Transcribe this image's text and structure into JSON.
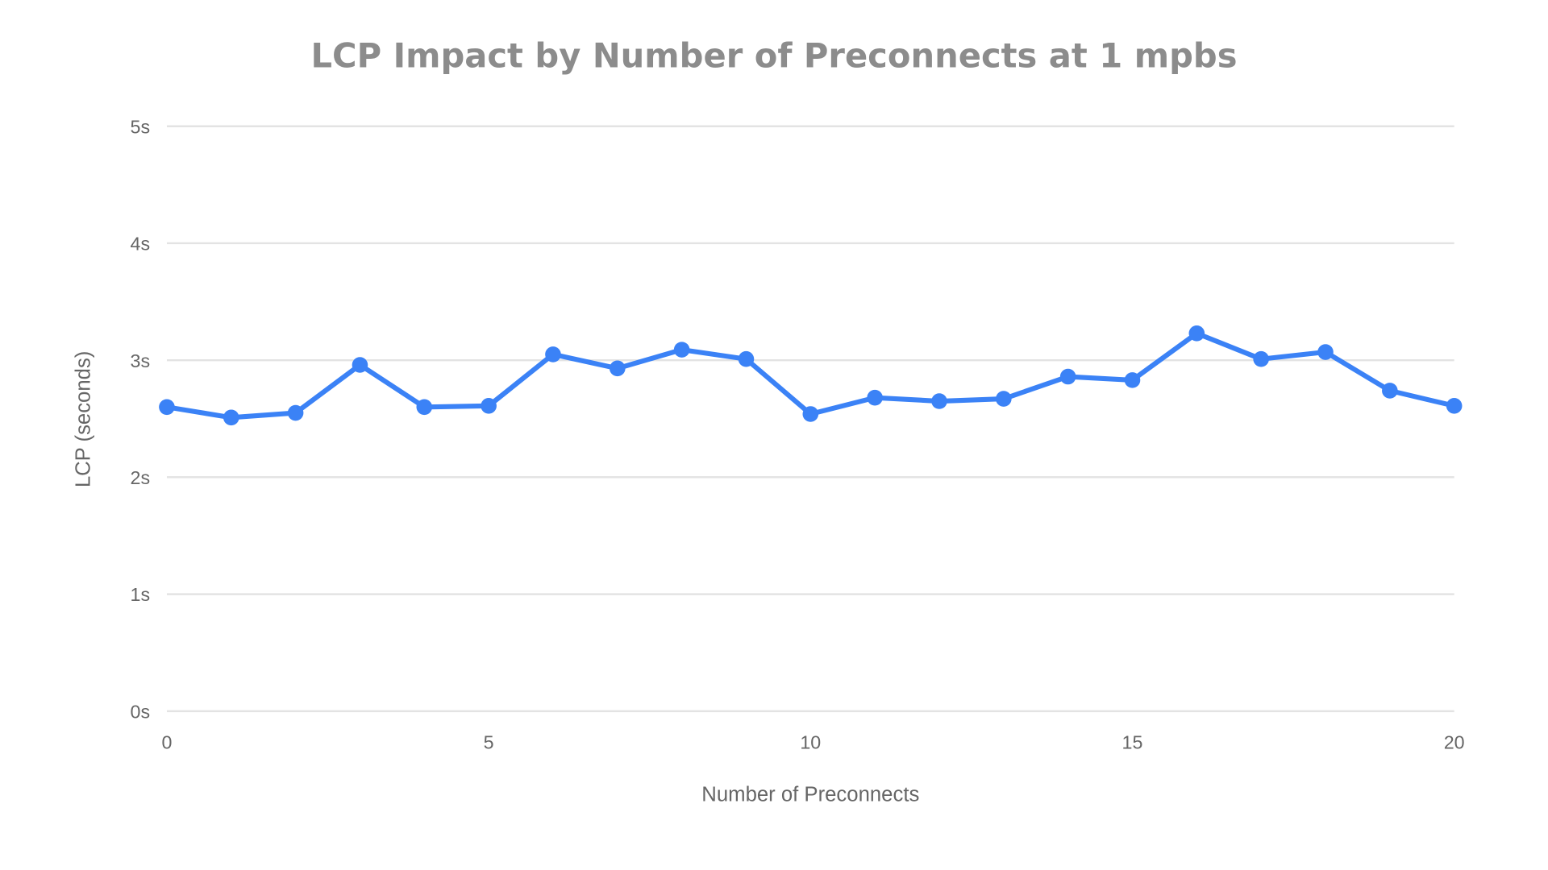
{
  "chart_data": {
    "type": "line",
    "title": "LCP Impact by Number of Preconnects at 1 mpbs",
    "xlabel": "Number of Preconnects",
    "ylabel": "LCP (seconds)",
    "x": [
      0,
      1,
      2,
      3,
      4,
      5,
      6,
      7,
      8,
      9,
      10,
      11,
      12,
      13,
      14,
      15,
      16,
      17,
      18,
      19,
      20
    ],
    "series": [
      {
        "values": [
          2.6,
          2.51,
          2.55,
          2.96,
          2.6,
          2.61,
          3.05,
          2.93,
          3.09,
          3.01,
          2.54,
          2.68,
          2.65,
          2.67,
          2.86,
          2.83,
          3.23,
          3.01,
          3.07,
          2.74,
          2.61
        ]
      }
    ],
    "xlim": [
      0,
      20
    ],
    "ylim": [
      0,
      5
    ],
    "x_ticks": [
      "0",
      "5",
      "10",
      "15",
      "20"
    ],
    "x_tick_values": [
      0,
      5,
      10,
      15,
      20
    ],
    "y_ticks": [
      "0s",
      "1s",
      "2s",
      "3s",
      "4s",
      "5s"
    ],
    "y_tick_values": [
      0,
      1,
      2,
      3,
      4,
      5
    ],
    "grid": "horizontal",
    "legend": "none",
    "colors": {
      "line": "#3b82f6",
      "grid": "#e3e3e3",
      "text": "#666666",
      "title": "#8c8c8c"
    }
  }
}
